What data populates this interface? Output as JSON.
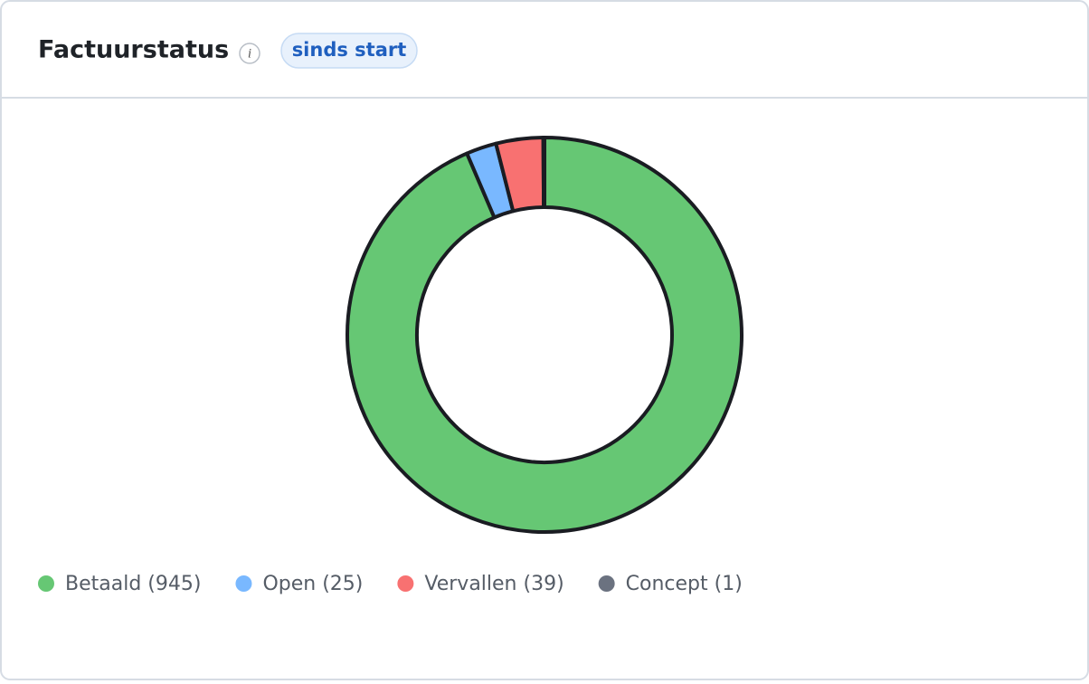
{
  "header": {
    "info_icon": "i",
    "badge": "sinds start"
  },
  "chart_data": {
    "type": "donut",
    "title": "Factuurstatus",
    "categories": [
      "Betaald (945)",
      "Open (25)",
      "Vervallen (39)",
      "Concept (1)"
    ],
    "values": [
      945,
      25,
      39,
      1
    ],
    "colors": [
      "#66c774",
      "#79b8ff",
      "#f87171",
      "#6b7280"
    ],
    "legend": "bottom-left"
  }
}
